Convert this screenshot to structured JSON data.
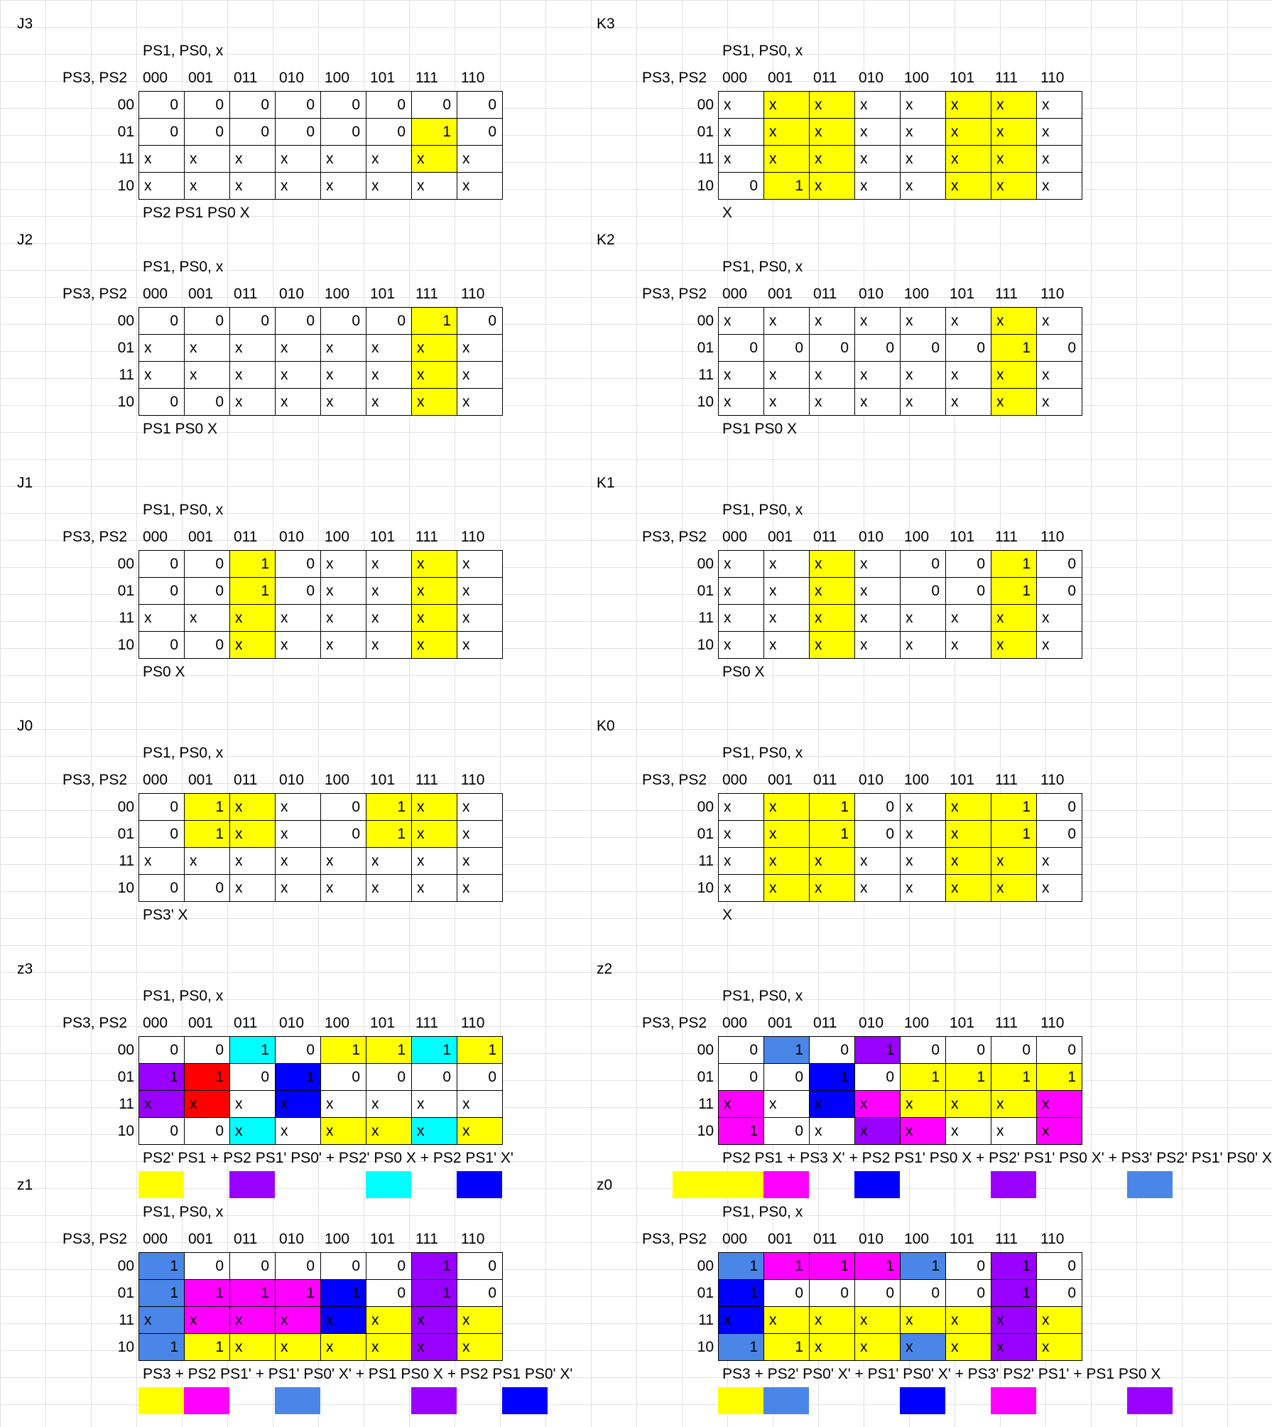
{
  "header_col": "PS1, PS0, x",
  "header_row": "PS3, PS2",
  "col_labels": [
    "000",
    "001",
    "011",
    "010",
    "100",
    "101",
    "111",
    "110"
  ],
  "row_labels": [
    "00",
    "01",
    "11",
    "10"
  ],
  "palette": {
    "Y": "#ffff00",
    "C": "#00ffff",
    "P": "#9900ff",
    "R": "#ff0000",
    "B": "#0000ff",
    "L": "#4a86e8",
    "M": "#ff00ff",
    "W": "#ffffff"
  },
  "maps": [
    {
      "name": "J3",
      "values": [
        [
          "0",
          "0",
          "0",
          "0",
          "0",
          "0",
          "0",
          "0"
        ],
        [
          "0",
          "0",
          "0",
          "0",
          "0",
          "0",
          "1",
          "0"
        ],
        [
          "x",
          "x",
          "x",
          "x",
          "x",
          "x",
          "x",
          "x"
        ],
        [
          "x",
          "x",
          "x",
          "x",
          "x",
          "x",
          "x",
          "x"
        ]
      ],
      "colors": [
        [
          "W",
          "W",
          "W",
          "W",
          "W",
          "W",
          "W",
          "W"
        ],
        [
          "W",
          "W",
          "W",
          "W",
          "W",
          "W",
          "Y",
          "W"
        ],
        [
          "W",
          "W",
          "W",
          "W",
          "W",
          "W",
          "Y",
          "W"
        ],
        [
          "W",
          "W",
          "W",
          "W",
          "W",
          "W",
          "W",
          "W"
        ]
      ],
      "equation": "PS2 PS1 PS0 X",
      "swatches": []
    },
    {
      "name": "K3",
      "values": [
        [
          "x",
          "x",
          "x",
          "x",
          "x",
          "x",
          "x",
          "x"
        ],
        [
          "x",
          "x",
          "x",
          "x",
          "x",
          "x",
          "x",
          "x"
        ],
        [
          "x",
          "x",
          "x",
          "x",
          "x",
          "x",
          "x",
          "x"
        ],
        [
          "0",
          "1",
          "x",
          "x",
          "x",
          "x",
          "x",
          "x"
        ]
      ],
      "colors": [
        [
          "W",
          "Y",
          "Y",
          "W",
          "W",
          "Y",
          "Y",
          "W"
        ],
        [
          "W",
          "Y",
          "Y",
          "W",
          "W",
          "Y",
          "Y",
          "W"
        ],
        [
          "W",
          "Y",
          "Y",
          "W",
          "W",
          "Y",
          "Y",
          "W"
        ],
        [
          "W",
          "Y",
          "Y",
          "W",
          "W",
          "Y",
          "Y",
          "W"
        ]
      ],
      "equation": "X",
      "swatches": []
    },
    {
      "name": "J2",
      "values": [
        [
          "0",
          "0",
          "0",
          "0",
          "0",
          "0",
          "1",
          "0"
        ],
        [
          "x",
          "x",
          "x",
          "x",
          "x",
          "x",
          "x",
          "x"
        ],
        [
          "x",
          "x",
          "x",
          "x",
          "x",
          "x",
          "x",
          "x"
        ],
        [
          "0",
          "0",
          "x",
          "x",
          "x",
          "x",
          "x",
          "x"
        ]
      ],
      "colors": [
        [
          "W",
          "W",
          "W",
          "W",
          "W",
          "W",
          "Y",
          "W"
        ],
        [
          "W",
          "W",
          "W",
          "W",
          "W",
          "W",
          "Y",
          "W"
        ],
        [
          "W",
          "W",
          "W",
          "W",
          "W",
          "W",
          "Y",
          "W"
        ],
        [
          "W",
          "W",
          "W",
          "W",
          "W",
          "W",
          "Y",
          "W"
        ]
      ],
      "equation": "PS1 PS0 X",
      "swatches": []
    },
    {
      "name": "K2",
      "values": [
        [
          "x",
          "x",
          "x",
          "x",
          "x",
          "x",
          "x",
          "x"
        ],
        [
          "0",
          "0",
          "0",
          "0",
          "0",
          "0",
          "1",
          "0"
        ],
        [
          "x",
          "x",
          "x",
          "x",
          "x",
          "x",
          "x",
          "x"
        ],
        [
          "x",
          "x",
          "x",
          "x",
          "x",
          "x",
          "x",
          "x"
        ]
      ],
      "colors": [
        [
          "W",
          "W",
          "W",
          "W",
          "W",
          "W",
          "Y",
          "W"
        ],
        [
          "W",
          "W",
          "W",
          "W",
          "W",
          "W",
          "Y",
          "W"
        ],
        [
          "W",
          "W",
          "W",
          "W",
          "W",
          "W",
          "Y",
          "W"
        ],
        [
          "W",
          "W",
          "W",
          "W",
          "W",
          "W",
          "Y",
          "W"
        ]
      ],
      "equation": "PS1 PS0 X",
      "swatches": []
    },
    {
      "name": "J1",
      "values": [
        [
          "0",
          "0",
          "1",
          "0",
          "x",
          "x",
          "x",
          "x"
        ],
        [
          "0",
          "0",
          "1",
          "0",
          "x",
          "x",
          "x",
          "x"
        ],
        [
          "x",
          "x",
          "x",
          "x",
          "x",
          "x",
          "x",
          "x"
        ],
        [
          "0",
          "0",
          "x",
          "x",
          "x",
          "x",
          "x",
          "x"
        ]
      ],
      "colors": [
        [
          "W",
          "W",
          "Y",
          "W",
          "W",
          "W",
          "Y",
          "W"
        ],
        [
          "W",
          "W",
          "Y",
          "W",
          "W",
          "W",
          "Y",
          "W"
        ],
        [
          "W",
          "W",
          "Y",
          "W",
          "W",
          "W",
          "Y",
          "W"
        ],
        [
          "W",
          "W",
          "Y",
          "W",
          "W",
          "W",
          "Y",
          "W"
        ]
      ],
      "equation": "PS0 X",
      "swatches": []
    },
    {
      "name": "K1",
      "values": [
        [
          "x",
          "x",
          "x",
          "x",
          "0",
          "0",
          "1",
          "0"
        ],
        [
          "x",
          "x",
          "x",
          "x",
          "0",
          "0",
          "1",
          "0"
        ],
        [
          "x",
          "x",
          "x",
          "x",
          "x",
          "x",
          "x",
          "x"
        ],
        [
          "x",
          "x",
          "x",
          "x",
          "x",
          "x",
          "x",
          "x"
        ]
      ],
      "colors": [
        [
          "W",
          "W",
          "Y",
          "W",
          "W",
          "W",
          "Y",
          "W"
        ],
        [
          "W",
          "W",
          "Y",
          "W",
          "W",
          "W",
          "Y",
          "W"
        ],
        [
          "W",
          "W",
          "Y",
          "W",
          "W",
          "W",
          "Y",
          "W"
        ],
        [
          "W",
          "W",
          "Y",
          "W",
          "W",
          "W",
          "Y",
          "W"
        ]
      ],
      "equation": "PS0 X",
      "swatches": []
    },
    {
      "name": "J0",
      "values": [
        [
          "0",
          "1",
          "x",
          "x",
          "0",
          "1",
          "x",
          "x"
        ],
        [
          "0",
          "1",
          "x",
          "x",
          "0",
          "1",
          "x",
          "x"
        ],
        [
          "x",
          "x",
          "x",
          "x",
          "x",
          "x",
          "x",
          "x"
        ],
        [
          "0",
          "0",
          "x",
          "x",
          "x",
          "x",
          "x",
          "x"
        ]
      ],
      "colors": [
        [
          "W",
          "Y",
          "Y",
          "W",
          "W",
          "Y",
          "Y",
          "W"
        ],
        [
          "W",
          "Y",
          "Y",
          "W",
          "W",
          "Y",
          "Y",
          "W"
        ],
        [
          "W",
          "W",
          "W",
          "W",
          "W",
          "W",
          "W",
          "W"
        ],
        [
          "W",
          "W",
          "W",
          "W",
          "W",
          "W",
          "W",
          "W"
        ]
      ],
      "equation": "PS3' X",
      "swatches": []
    },
    {
      "name": "K0",
      "values": [
        [
          "x",
          "x",
          "1",
          "0",
          "x",
          "x",
          "1",
          "0"
        ],
        [
          "x",
          "x",
          "1",
          "0",
          "x",
          "x",
          "1",
          "0"
        ],
        [
          "x",
          "x",
          "x",
          "x",
          "x",
          "x",
          "x",
          "x"
        ],
        [
          "x",
          "x",
          "x",
          "x",
          "x",
          "x",
          "x",
          "x"
        ]
      ],
      "colors": [
        [
          "W",
          "Y",
          "Y",
          "W",
          "W",
          "Y",
          "Y",
          "W"
        ],
        [
          "W",
          "Y",
          "Y",
          "W",
          "W",
          "Y",
          "Y",
          "W"
        ],
        [
          "W",
          "Y",
          "Y",
          "W",
          "W",
          "Y",
          "Y",
          "W"
        ],
        [
          "W",
          "Y",
          "Y",
          "W",
          "W",
          "Y",
          "Y",
          "W"
        ]
      ],
      "equation": "X",
      "swatches": []
    },
    {
      "name": "z3",
      "values": [
        [
          "0",
          "0",
          "1",
          "0",
          "1",
          "1",
          "1",
          "1"
        ],
        [
          "1",
          "1",
          "0",
          "1",
          "0",
          "0",
          "0",
          "0"
        ],
        [
          "x",
          "x",
          "x",
          "x",
          "x",
          "x",
          "x",
          "x"
        ],
        [
          "0",
          "0",
          "x",
          "x",
          "x",
          "x",
          "x",
          "x"
        ]
      ],
      "colors": [
        [
          "W",
          "W",
          "C",
          "W",
          "Y",
          "Y",
          "C",
          "Y"
        ],
        [
          "P",
          "R",
          "W",
          "B",
          "W",
          "W",
          "W",
          "W"
        ],
        [
          "P",
          "R",
          "W",
          "B",
          "W",
          "W",
          "W",
          "W"
        ],
        [
          "W",
          "W",
          "C",
          "W",
          "Y",
          "Y",
          "C",
          "Y"
        ]
      ],
      "equation": "PS2' PS1 + PS2 PS1' PS0' + PS2' PS0 X + PS2 PS1' X'",
      "swatches": [
        {
          "col": 0,
          "span": 1,
          "c": "Y"
        },
        {
          "col": 2,
          "span": 1,
          "c": "P"
        },
        {
          "col": 5,
          "span": 1,
          "c": "C"
        },
        {
          "col": 7,
          "span": 1,
          "c": "B"
        }
      ]
    },
    {
      "name": "z2",
      "values": [
        [
          "0",
          "1",
          "0",
          "1",
          "0",
          "0",
          "0",
          "0"
        ],
        [
          "0",
          "0",
          "1",
          "0",
          "1",
          "1",
          "1",
          "1"
        ],
        [
          "x",
          "x",
          "x",
          "x",
          "x",
          "x",
          "x",
          "x"
        ],
        [
          "1",
          "0",
          "x",
          "x",
          "x",
          "x",
          "x",
          "x"
        ]
      ],
      "colors": [
        [
          "W",
          "L",
          "W",
          "P",
          "W",
          "W",
          "W",
          "W"
        ],
        [
          "W",
          "W",
          "B",
          "W",
          "Y",
          "Y",
          "Y",
          "Y"
        ],
        [
          "M",
          "W",
          "B",
          "M",
          "Y",
          "Y",
          "Y",
          "M"
        ],
        [
          "M",
          "W",
          "W",
          "P",
          "M",
          "W",
          "W",
          "M"
        ]
      ],
      "equation": "PS2 PS1 + PS3 X' + PS2 PS1' PS0 X + PS2' PS1' PS0 X' + PS3' PS2' PS1' PS0' X",
      "swatches": [
        {
          "col": -1,
          "span": 2,
          "c": "Y"
        },
        {
          "col": 1,
          "span": 1,
          "c": "M"
        },
        {
          "col": 3,
          "span": 1,
          "c": "B"
        },
        {
          "col": 6,
          "span": 1,
          "c": "P"
        },
        {
          "col": 9,
          "span": 1,
          "c": "L"
        }
      ]
    },
    {
      "name": "z1",
      "values": [
        [
          "1",
          "0",
          "0",
          "0",
          "0",
          "0",
          "1",
          "0"
        ],
        [
          "1",
          "1",
          "1",
          "1",
          "1",
          "0",
          "1",
          "0"
        ],
        [
          "x",
          "x",
          "x",
          "x",
          "x",
          "x",
          "x",
          "x"
        ],
        [
          "1",
          "1",
          "x",
          "x",
          "x",
          "x",
          "x",
          "x"
        ]
      ],
      "colors": [
        [
          "L",
          "W",
          "W",
          "W",
          "W",
          "W",
          "P",
          "W"
        ],
        [
          "L",
          "M",
          "M",
          "M",
          "B",
          "W",
          "P",
          "W"
        ],
        [
          "L",
          "M",
          "M",
          "M",
          "B",
          "Y",
          "P",
          "Y"
        ],
        [
          "L",
          "Y",
          "Y",
          "Y",
          "Y",
          "Y",
          "P",
          "Y"
        ]
      ],
      "equation": "PS3 + PS2 PS1' + PS1' PS0' X' + PS1 PS0 X + PS2 PS1 PS0' X'",
      "swatches": [
        {
          "col": 0,
          "span": 1,
          "c": "Y"
        },
        {
          "col": 1,
          "span": 1,
          "c": "M"
        },
        {
          "col": 3,
          "span": 1,
          "c": "L"
        },
        {
          "col": 6,
          "span": 1,
          "c": "P"
        },
        {
          "col": 8,
          "span": 1,
          "c": "B"
        }
      ]
    },
    {
      "name": "z0",
      "values": [
        [
          "1",
          "1",
          "1",
          "1",
          "1",
          "0",
          "1",
          "0"
        ],
        [
          "1",
          "0",
          "0",
          "0",
          "0",
          "0",
          "1",
          "0"
        ],
        [
          "x",
          "x",
          "x",
          "x",
          "x",
          "x",
          "x",
          "x"
        ],
        [
          "1",
          "1",
          "x",
          "x",
          "x",
          "x",
          "x",
          "x"
        ]
      ],
      "colors": [
        [
          "L",
          "M",
          "M",
          "M",
          "L",
          "W",
          "P",
          "W"
        ],
        [
          "B",
          "W",
          "W",
          "W",
          "W",
          "W",
          "P",
          "W"
        ],
        [
          "B",
          "Y",
          "Y",
          "Y",
          "Y",
          "Y",
          "P",
          "Y"
        ],
        [
          "L",
          "Y",
          "Y",
          "Y",
          "L",
          "Y",
          "P",
          "Y"
        ]
      ],
      "equation": "PS3 + PS2' PS0' X' + PS1' PS0' X' + PS3' PS2' PS1' + PS1 PS0 X",
      "swatches": [
        {
          "col": 0,
          "span": 1,
          "c": "Y"
        },
        {
          "col": 1,
          "span": 1,
          "c": "L"
        },
        {
          "col": 4,
          "span": 1,
          "c": "B"
        },
        {
          "col": 6,
          "span": 1,
          "c": "M"
        },
        {
          "col": 9,
          "span": 1,
          "c": "P"
        }
      ]
    }
  ]
}
